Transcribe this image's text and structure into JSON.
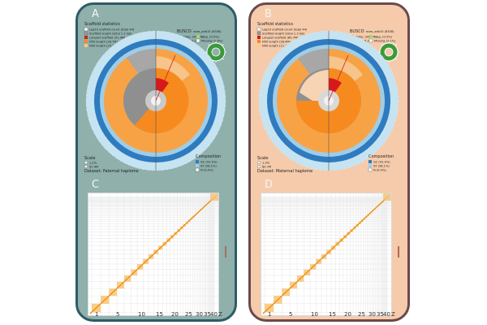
{
  "figure": {
    "panels": [
      {
        "letter": "A",
        "scaffold_stats_title": "Scaffold statistics",
        "stats_lines": [
          "Log10 scaffold count (total 44)",
          "Scaffold length (total 1.2 Gb)",
          "Longest scaffold (91.4M)",
          "N50 length (28.7M)",
          "N90 length (10.3M)"
        ],
        "busco_title": "BUSCO",
        "busco_lineage": "aves_odb10 (8338)",
        "busco_lines": [
          "Comp. (96.9%)",
          "Frag. (0.5%)",
          "Dupl. (0.2%)",
          "Missing (2.6%)"
        ],
        "scale_title": "Scale",
        "scale_lines": [
          "1.2%",
          "91.4M"
        ],
        "composition_title": "Composition",
        "composition_lines": [
          "GC (41.9%)",
          "AT (58.1%)",
          "N (0.0%)"
        ],
        "dataset": "Dataset: Paternal haplome"
      },
      {
        "letter": "B",
        "scaffold_stats_title": "Scaffold statistics",
        "stats_lines": [
          "Log10 scaffold count (total 44)",
          "Scaffold length (total 1.3 Gb)",
          "Longest scaffold (89.7M)",
          "N50 length (28.4M)",
          "N90 length (11.2M)"
        ],
        "busco_title": "BUSCO",
        "busco_lineage": "aves_odb10 (8338)",
        "busco_lines": [
          "Comp. (96.4%)",
          "Frag. (0.5%)",
          "Dupl. (0.2%)",
          "Missing (3.1%)"
        ],
        "scale_title": "Scale",
        "scale_lines": [
          "1.3%",
          "89.7M"
        ],
        "composition_title": "Composition",
        "composition_lines": [
          "GC (41.9%)",
          "AT (58.1%)",
          "N (0.0%)"
        ],
        "dataset": "Dataset: Maternal haplome"
      },
      {
        "letter": "C",
        "x_ticks": [
          "1",
          "5",
          "10",
          "15",
          "20",
          "25",
          "30",
          "35",
          "40",
          "Z"
        ]
      },
      {
        "letter": "D",
        "x_ticks": [
          "1",
          "5",
          "10",
          "15",
          "20",
          "25",
          "30",
          "35",
          "40",
          "Z"
        ]
      }
    ],
    "colors": {
      "panel_left_bg": "#8fb0ab",
      "panel_right_bg": "#f6cbab",
      "scaffold_orange": "#f7a345",
      "scaffold_dark_orange": "#f78a1e",
      "n50_red": "#d7191c",
      "gc_blue": "#2e7bbf",
      "at_light_blue": "#9fcde8",
      "busco_green": "#3c9a3a",
      "contact_diagonal": "#f5a623"
    }
  }
}
